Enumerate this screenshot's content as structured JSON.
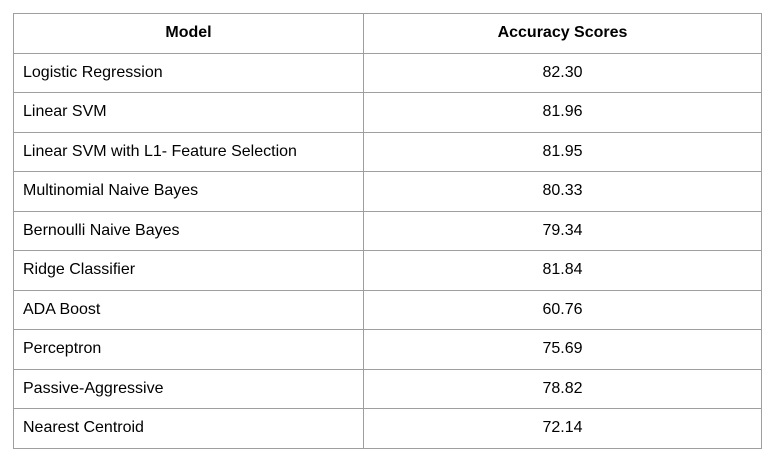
{
  "table": {
    "headers": [
      "Model",
      "Accuracy Scores"
    ],
    "rows": [
      {
        "model": "Logistic Regression",
        "score": "82.30"
      },
      {
        "model": "Linear SVM",
        "score": "81.96"
      },
      {
        "model": "Linear SVM with L1- Feature Selection",
        "score": "81.95"
      },
      {
        "model": "Multinomial Naive Bayes",
        "score": "80.33"
      },
      {
        "model": "Bernoulli Naive Bayes",
        "score": "79.34"
      },
      {
        "model": "Ridge Classifier",
        "score": "81.84"
      },
      {
        "model": "ADA Boost",
        "score": "60.76"
      },
      {
        "model": "Perceptron",
        "score": "75.69"
      },
      {
        "model": "Passive-Aggressive",
        "score": "78.82"
      },
      {
        "model": "Nearest Centroid",
        "score": "72.14"
      }
    ]
  }
}
